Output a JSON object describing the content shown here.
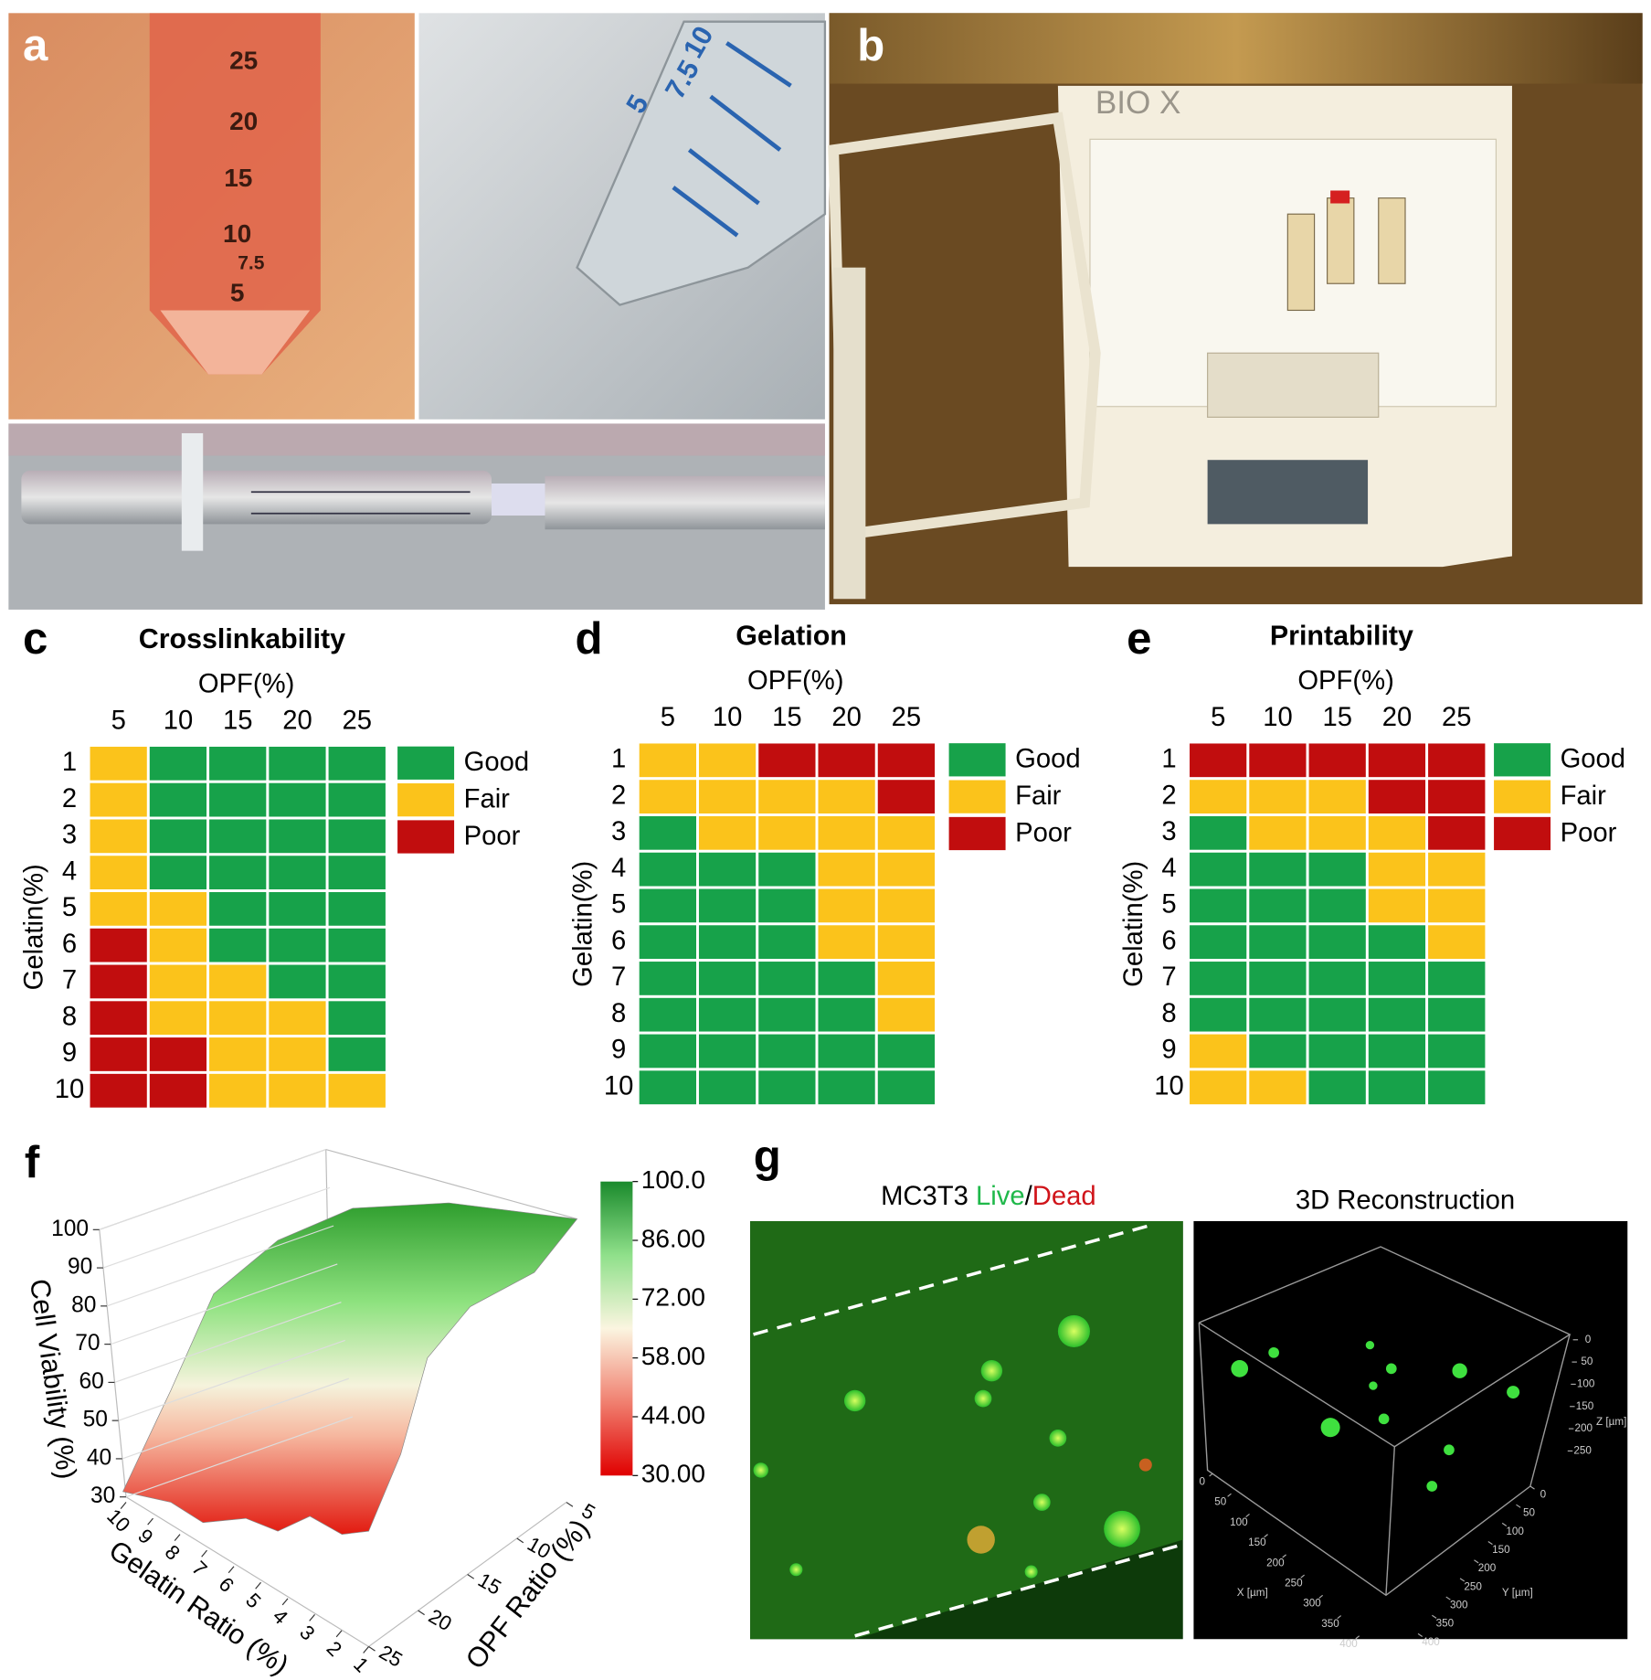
{
  "panel_labels": [
    "a",
    "b",
    "c",
    "d",
    "e",
    "f",
    "g"
  ],
  "photo_text": {
    "tube_marks": [
      "25",
      "20",
      "15",
      "10",
      "7.5",
      "5"
    ],
    "tube2_marks": [
      "10",
      "7.5",
      "5"
    ],
    "printer_brand": "BIO X"
  },
  "chart_data": [
    {
      "type": "heatmap",
      "title": "Crosslinkability",
      "xlabel": "OPF(%)",
      "ylabel": "Gelatin(%)",
      "x": [
        5,
        10,
        15,
        20,
        25
      ],
      "y": [
        1,
        2,
        3,
        4,
        5,
        6,
        7,
        8,
        9,
        10
      ],
      "legend": [
        {
          "name": "Good",
          "color": "#17a24a"
        },
        {
          "name": "Fair",
          "color": "#fbc31b"
        },
        {
          "name": "Poor",
          "color": "#c10d0e"
        }
      ],
      "z": [
        [
          1,
          0,
          0,
          0,
          0
        ],
        [
          1,
          0,
          0,
          0,
          0
        ],
        [
          1,
          0,
          0,
          0,
          0
        ],
        [
          1,
          0,
          0,
          0,
          0
        ],
        [
          1,
          1,
          0,
          0,
          0
        ],
        [
          2,
          1,
          0,
          0,
          0
        ],
        [
          2,
          1,
          1,
          0,
          0
        ],
        [
          2,
          1,
          1,
          1,
          0
        ],
        [
          2,
          2,
          1,
          1,
          0
        ],
        [
          2,
          2,
          1,
          1,
          1
        ]
      ]
    },
    {
      "type": "heatmap",
      "title": "Gelation",
      "xlabel": "OPF(%)",
      "ylabel": "Gelatin(%)",
      "x": [
        5,
        10,
        15,
        20,
        25
      ],
      "y": [
        1,
        2,
        3,
        4,
        5,
        6,
        7,
        8,
        9,
        10
      ],
      "legend": [
        {
          "name": "Good",
          "color": "#17a24a"
        },
        {
          "name": "Fair",
          "color": "#fbc31b"
        },
        {
          "name": "Poor",
          "color": "#c10d0e"
        }
      ],
      "z": [
        [
          1,
          1,
          2,
          2,
          2
        ],
        [
          1,
          1,
          1,
          1,
          2
        ],
        [
          0,
          1,
          1,
          1,
          1
        ],
        [
          0,
          0,
          0,
          1,
          1
        ],
        [
          0,
          0,
          0,
          1,
          1
        ],
        [
          0,
          0,
          0,
          1,
          1
        ],
        [
          0,
          0,
          0,
          0,
          1
        ],
        [
          0,
          0,
          0,
          0,
          1
        ],
        [
          0,
          0,
          0,
          0,
          0
        ],
        [
          0,
          0,
          0,
          0,
          0
        ]
      ]
    },
    {
      "type": "heatmap",
      "title": "Printability",
      "xlabel": "OPF(%)",
      "ylabel": "Gelatin(%)",
      "x": [
        5,
        10,
        15,
        20,
        25
      ],
      "y": [
        1,
        2,
        3,
        4,
        5,
        6,
        7,
        8,
        9,
        10
      ],
      "legend": [
        {
          "name": "Good",
          "color": "#17a24a"
        },
        {
          "name": "Fair",
          "color": "#fbc31b"
        },
        {
          "name": "Poor",
          "color": "#c10d0e"
        }
      ],
      "z": [
        [
          2,
          2,
          2,
          2,
          2
        ],
        [
          1,
          1,
          1,
          2,
          2
        ],
        [
          0,
          1,
          1,
          1,
          2
        ],
        [
          0,
          0,
          0,
          1,
          1
        ],
        [
          0,
          0,
          0,
          1,
          1
        ],
        [
          0,
          0,
          0,
          0,
          1
        ],
        [
          0,
          0,
          0,
          0,
          0
        ],
        [
          0,
          0,
          0,
          0,
          0
        ],
        [
          1,
          0,
          0,
          0,
          0
        ],
        [
          1,
          1,
          0,
          0,
          0
        ]
      ]
    },
    {
      "type": "surface3d",
      "zlabel": "Cell Viability (%)",
      "xlabel": "Gelatin Ratio (%)",
      "ylabel": "OPF Ratio (%)",
      "zlim": [
        30,
        100
      ],
      "zticks": [
        30,
        40,
        50,
        60,
        70,
        80,
        90,
        100
      ],
      "xlim": [
        10,
        1
      ],
      "xticks": [
        10,
        9,
        8,
        7,
        6,
        5,
        4,
        3,
        2,
        1
      ],
      "ylim": [
        25,
        5
      ],
      "yticks": [
        25,
        20,
        15,
        10,
        5
      ],
      "colorbar": {
        "lim": [
          30,
          100
        ],
        "colors": [
          "#e00000",
          "#f08070",
          "#fbf5e0",
          "#8fe08a",
          "#1a8a2c"
        ],
        "ticks": [
          {
            "value": 100,
            "label": "100.0"
          },
          {
            "value": 86,
            "label": "86.00"
          },
          {
            "value": 72,
            "label": "72.00"
          },
          {
            "value": 58,
            "label": "58.00"
          },
          {
            "value": 44,
            "label": "44.00"
          },
          {
            "value": 30,
            "label": "30.00"
          }
        ]
      }
    }
  ],
  "microscopy": {
    "title_prefix": "MC3T3 ",
    "live": "Live",
    "slash": "/",
    "dead": "Dead",
    "reconstruction_title": "3D Reconstruction",
    "x_axis": {
      "label": "X [µm]",
      "lim": [
        0,
        400
      ],
      "ticks": [
        0,
        50,
        100,
        150,
        200,
        250,
        300,
        350,
        400
      ]
    },
    "y_axis": {
      "label": "Y [µm]",
      "lim": [
        0,
        400
      ],
      "ticks": [
        0,
        50,
        100,
        150,
        200,
        250,
        300,
        350,
        400
      ]
    },
    "z_axis": {
      "label": "Z [µm]",
      "lim": [
        0,
        250
      ],
      "ticks": [
        0,
        50,
        100,
        150,
        200,
        250
      ]
    }
  }
}
